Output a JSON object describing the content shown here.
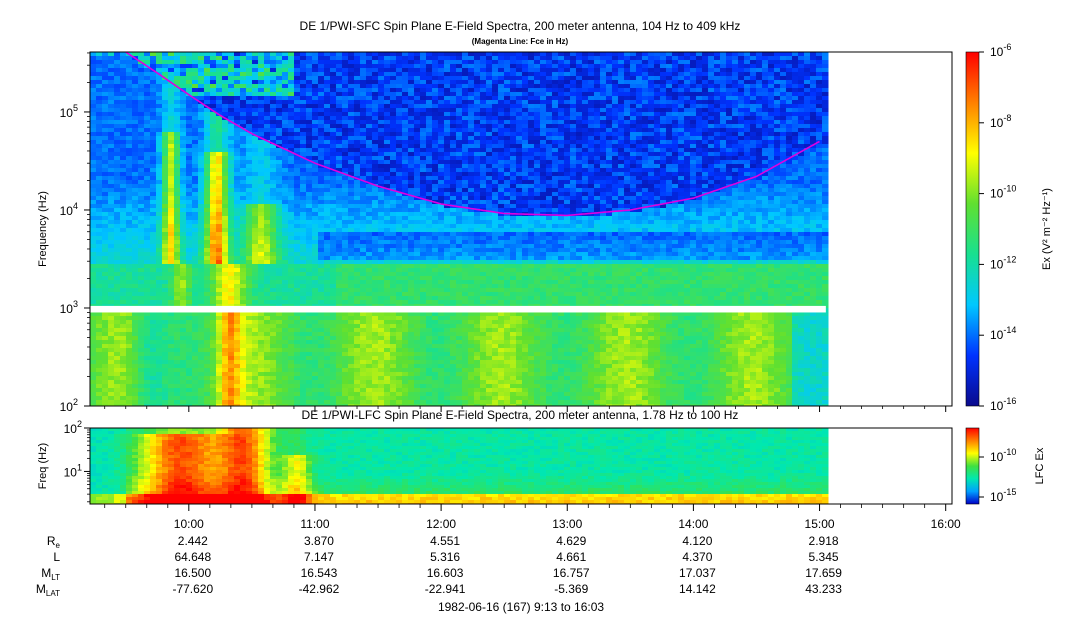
{
  "chart_data": [
    {
      "type": "heatmap",
      "title": "DE 1/PWI-SFC  Spin Plane E-Field Spectra, 200 meter antenna, 104 Hz to 409 kHz",
      "subtitle": "(Magenta Line: Fce in Hz)",
      "ylabel": "Frequency (Hz)",
      "yscale": "log",
      "ylim": [
        100,
        409000
      ],
      "ytick_exponents": [
        "5",
        "4",
        "3",
        "2"
      ],
      "ytick_base": "10",
      "data_end_time": "15:03",
      "gap_band_hz": [
        900,
        1050
      ],
      "colorbar": {
        "label": "Ex",
        "label_units": "(V² m⁻² Hz⁻¹)",
        "scale": "log",
        "range": [
          1e-16,
          1e-06
        ],
        "tick_exponents": [
          "-6",
          "-8",
          "-10",
          "-12",
          "-14",
          "-16"
        ],
        "colors": [
          "#0a0a8c",
          "#0033ff",
          "#00c8ff",
          "#18e090",
          "#60e030",
          "#ffff00",
          "#ff8000",
          "#ff0000"
        ]
      },
      "series": [
        {
          "name": "Fce",
          "color": "#e000e0",
          "x": [
            "09:30",
            "09:45",
            "10:00",
            "10:15",
            "10:30",
            "11:00",
            "11:30",
            "12:00",
            "12:30",
            "13:00",
            "13:30",
            "14:00",
            "14:30",
            "15:00"
          ],
          "y": [
            409000,
            250000,
            150000,
            92000,
            60000,
            30000,
            17500,
            11500,
            9200,
            8800,
            10000,
            13200,
            22000,
            50000
          ]
        }
      ]
    },
    {
      "type": "heatmap",
      "title": "DE 1/PWI-LFC  Spin Plane E-Field Spectra, 200 meter antenna, 1.78 Hz to 100 Hz",
      "ylabel": "Freq (Hz)",
      "yscale": "log",
      "ylim": [
        1.78,
        100
      ],
      "ytick_exponents": [
        "2",
        "1"
      ],
      "ytick_base": "10",
      "colorbar": {
        "label": "LFC Ex",
        "tick_exponents": [
          "-10",
          "-15"
        ],
        "colors": [
          "#0000c8",
          "#00a0ff",
          "#00e8b0",
          "#40e040",
          "#ffff00",
          "#ff8000",
          "#ff0000"
        ]
      }
    }
  ],
  "xaxis": {
    "range": [
      "09:13",
      "16:03"
    ],
    "ticks": [
      "10:00",
      "11:00",
      "12:00",
      "13:00",
      "14:00",
      "15:00",
      "16:00"
    ]
  },
  "ephemeris": {
    "rows": [
      {
        "label": "R",
        "sub": "e",
        "values": [
          "2.442",
          "3.870",
          "4.551",
          "4.629",
          "4.120",
          "2.918"
        ]
      },
      {
        "label": "L",
        "sub": "",
        "values": [
          "64.648",
          "7.147",
          "5.316",
          "4.661",
          "4.370",
          "5.345"
        ]
      },
      {
        "label": "M",
        "sub": "LT",
        "values": [
          "16.500",
          "16.543",
          "16.603",
          "16.757",
          "17.037",
          "17.659"
        ]
      },
      {
        "label": "M",
        "sub": "LAT",
        "values": [
          "-77.620",
          "-42.962",
          "-22.941",
          "-5.369",
          "14.142",
          "43.233"
        ]
      }
    ]
  },
  "footer": "1982-06-16 (167) 9:13 to 16:03"
}
